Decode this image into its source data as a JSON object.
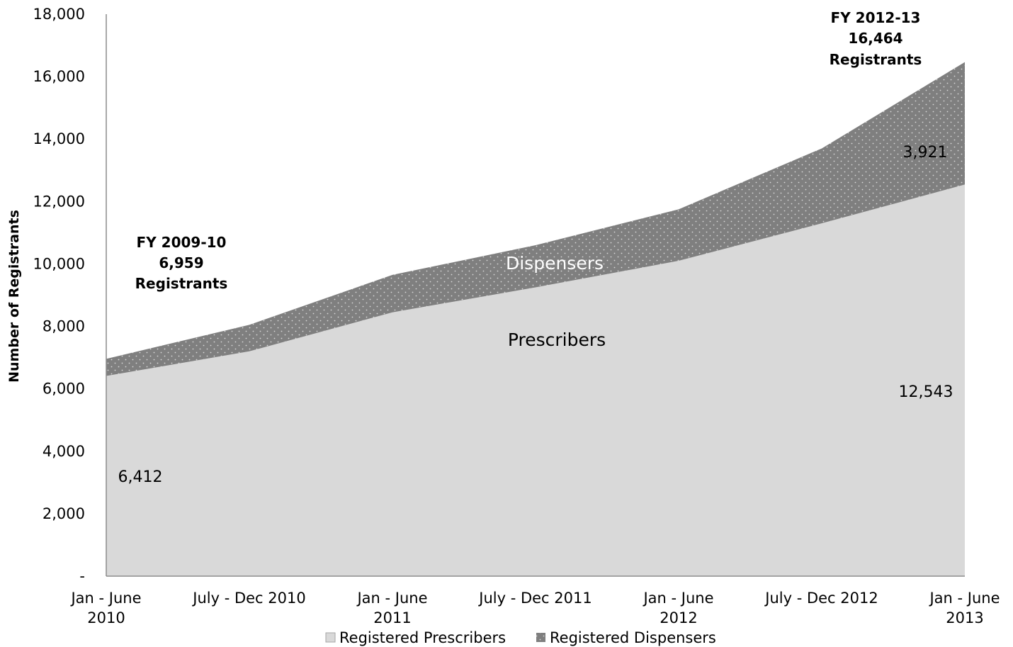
{
  "chart_data": {
    "type": "area",
    "stacked": true,
    "categories": [
      [
        "Jan - June",
        "2010"
      ],
      [
        "July - Dec 2010"
      ],
      [
        "Jan - June",
        "2011"
      ],
      [
        "July - Dec 2011"
      ],
      [
        "Jan - June",
        "2012"
      ],
      [
        "July - Dec 2012"
      ],
      [
        "Jan - June",
        "2013"
      ]
    ],
    "series": [
      {
        "name": "Registered Prescribers",
        "values": [
          6412,
          7200,
          8450,
          9250,
          10100,
          11300,
          12543
        ],
        "color": "#d9d9d9"
      },
      {
        "name": "Registered Dispensers",
        "values": [
          547,
          850,
          1200,
          1350,
          1650,
          2400,
          3921
        ],
        "color": "#7f7f7f"
      }
    ],
    "ylabel": "Number of Registrants",
    "ylim": [
      0,
      18000
    ],
    "yticks": [
      {
        "value": 0,
        "label": "-"
      },
      {
        "value": 2000,
        "label": "2,000"
      },
      {
        "value": 4000,
        "label": "4,000"
      },
      {
        "value": 6000,
        "label": "6,000"
      },
      {
        "value": 8000,
        "label": "8,000"
      },
      {
        "value": 10000,
        "label": "10,000"
      },
      {
        "value": 12000,
        "label": "12,000"
      },
      {
        "value": 14000,
        "label": "14,000"
      },
      {
        "value": 16000,
        "label": "16,000"
      },
      {
        "value": 18000,
        "label": "18,000"
      }
    ],
    "series_labels": {
      "prescribers": "Prescribers",
      "dispensers": "Dispensers"
    },
    "data_labels": {
      "first_prescribers": "6,412",
      "last_prescribers": "12,543",
      "last_dispensers": "3,921"
    },
    "annotations": {
      "left": [
        "FY 2009-10",
        "6,959",
        "Registrants"
      ],
      "right": [
        "FY 2012-13",
        "16,464",
        "Registrants"
      ]
    },
    "grid": false,
    "legend": "bottom"
  }
}
